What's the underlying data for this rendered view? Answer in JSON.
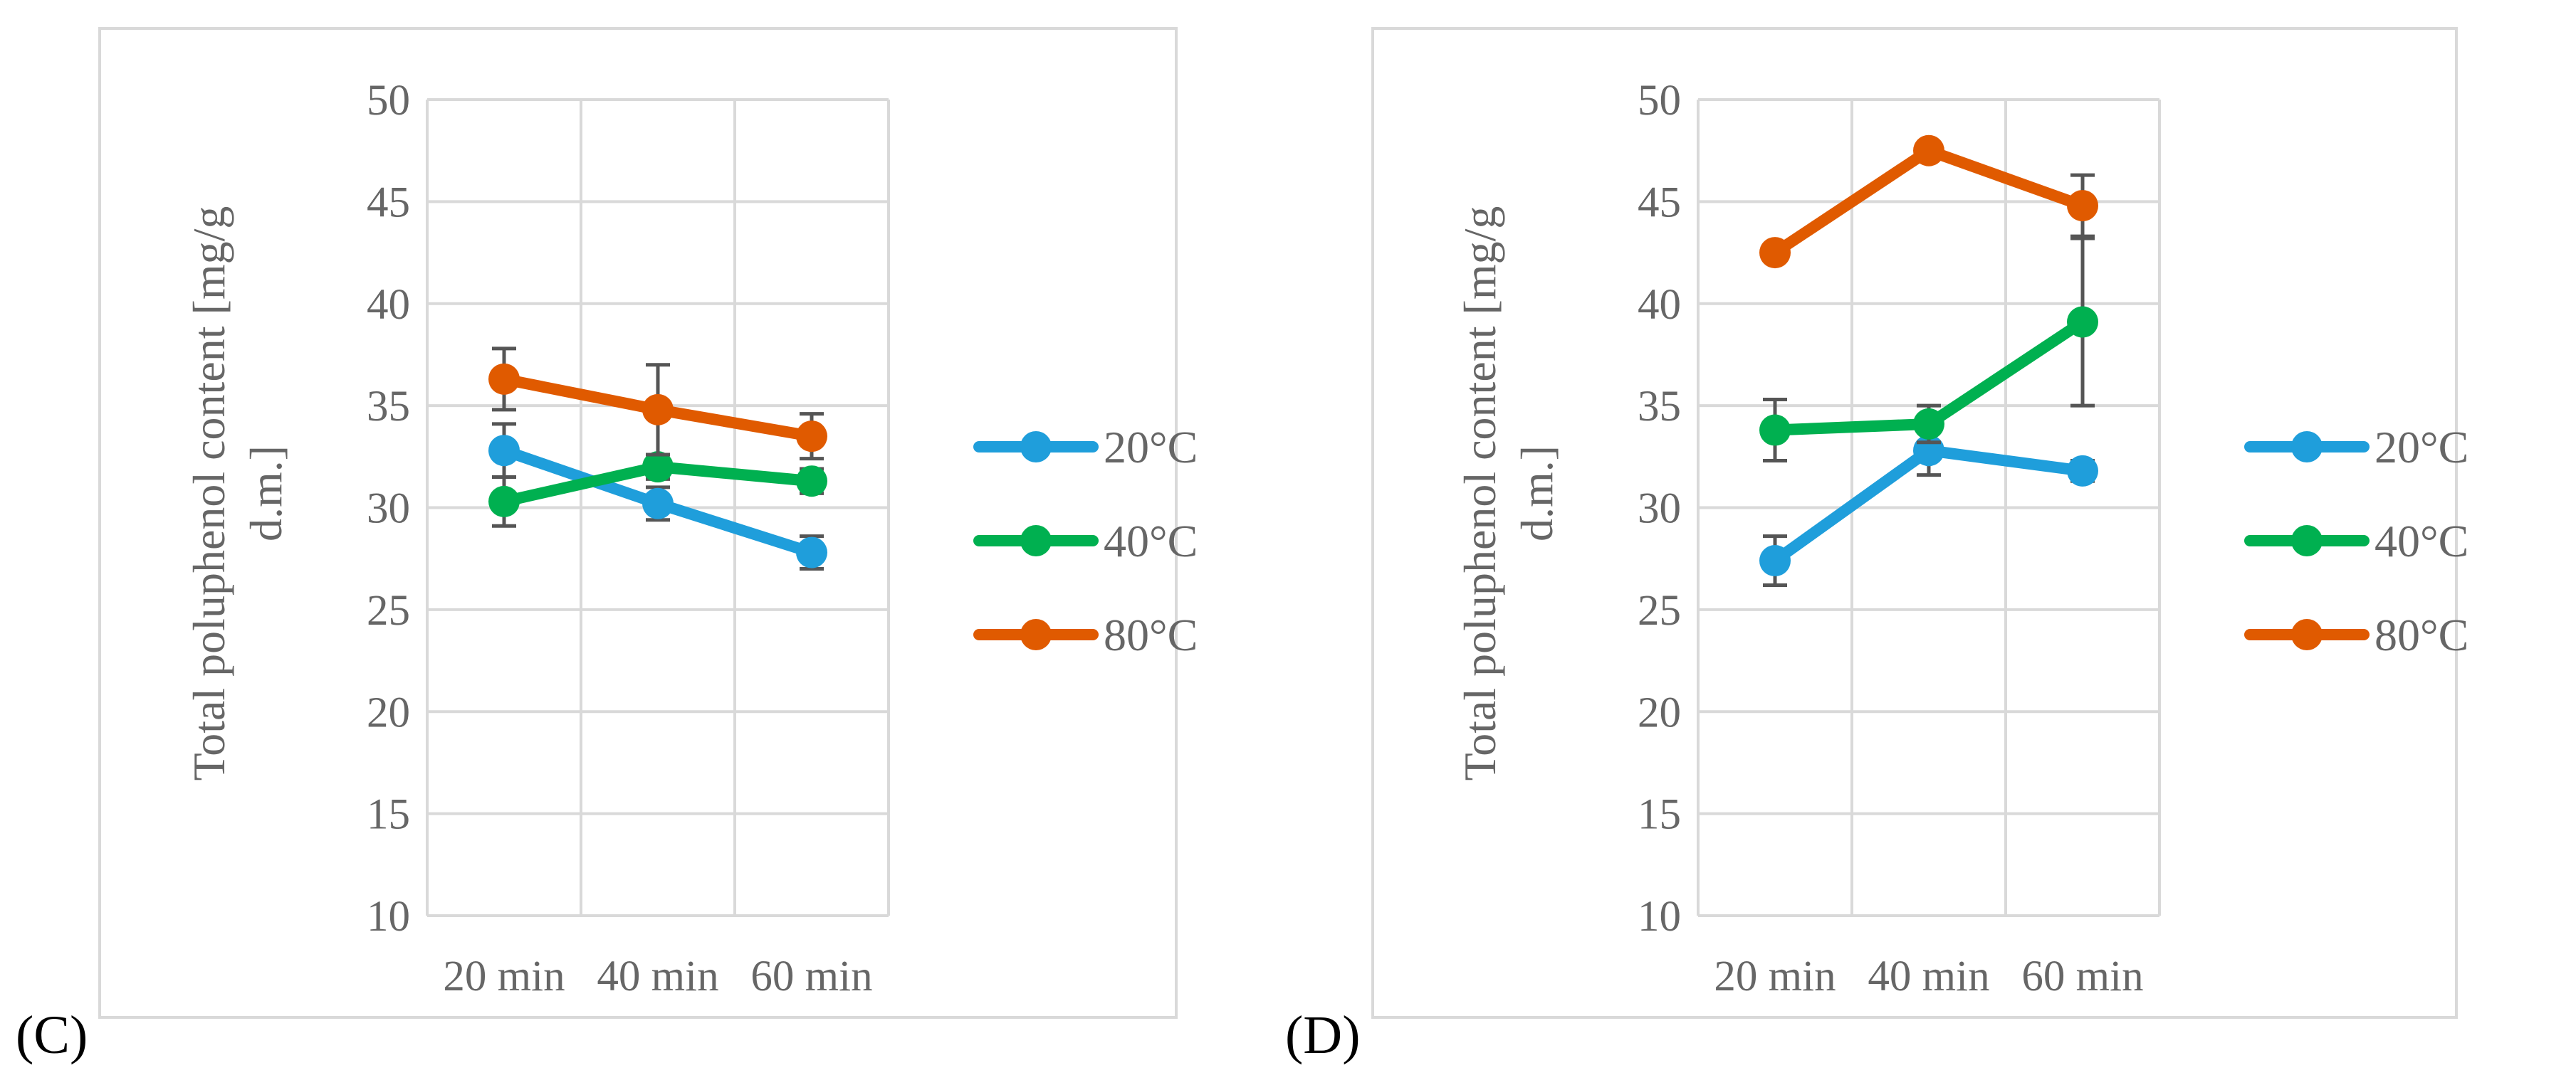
{
  "chart_data": [
    {
      "panel_label": "(C)",
      "type": "line",
      "categories": [
        "20 min",
        "40 min",
        "60 min"
      ],
      "ylabel_lines": [
        "Total poluphenol content [mg/g",
        "d.m.]"
      ],
      "ylim": [
        10,
        50
      ],
      "yticks": [
        10,
        15,
        20,
        25,
        30,
        35,
        40,
        45,
        50
      ],
      "grid": true,
      "legend_position": "right",
      "series": [
        {
          "name": "20°C",
          "values": [
            32.8,
            30.2,
            27.8
          ],
          "errors": [
            1.3,
            0.8,
            0.8
          ]
        },
        {
          "name": "40°C",
          "values": [
            30.3,
            32.0,
            31.3
          ],
          "errors": [
            1.2,
            0.6,
            0.6
          ]
        },
        {
          "name": "80°C",
          "values": [
            36.3,
            34.8,
            33.5
          ],
          "errors": [
            1.5,
            2.2,
            1.1
          ]
        }
      ]
    },
    {
      "panel_label": "(D)",
      "type": "line",
      "categories": [
        "20 min",
        "40 min",
        "60 min"
      ],
      "ylabel_lines": [
        "Total poluphenol content [mg/g",
        "d.m.]"
      ],
      "ylim": [
        10,
        50
      ],
      "yticks": [
        10,
        15,
        20,
        25,
        30,
        35,
        40,
        45,
        50
      ],
      "grid": true,
      "legend_position": "right",
      "series": [
        {
          "name": "20°C",
          "values": [
            27.4,
            32.8,
            31.8
          ],
          "errors": [
            1.2,
            1.2,
            0.5
          ]
        },
        {
          "name": "40°C",
          "values": [
            33.8,
            34.1,
            39.1
          ],
          "errors": [
            1.5,
            0.9,
            4.1
          ]
        },
        {
          "name": "80°C",
          "values": [
            42.5,
            47.5,
            44.8
          ],
          "errors": [
            0.4,
            0.4,
            1.5
          ]
        }
      ]
    }
  ],
  "colors": {
    "series": [
      "#1f9edb",
      "#00b050",
      "#e05a00"
    ],
    "grid": "#d9d9d9",
    "error_bar": "#555555",
    "frame": "#d9d9d9",
    "text": "#666666"
  }
}
